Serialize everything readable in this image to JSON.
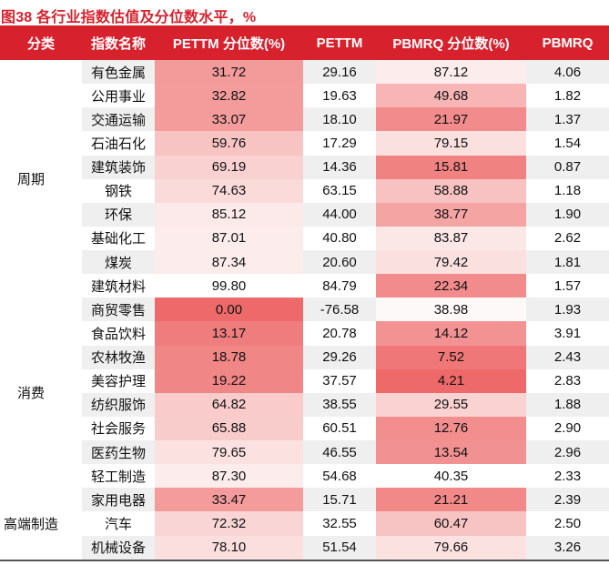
{
  "chart_data": {
    "type": "table",
    "title": "图38  各行业指数估值及分位数水平，%",
    "columns": [
      "分类",
      "指数名称",
      "PETTM 分位数(%)",
      "PETTM",
      "PBMRQ 分位数(%)",
      "PBMRQ"
    ],
    "groups": [
      {
        "category": "周期",
        "rows": [
          {
            "name": "有色金属",
            "pettm_pct": "31.72",
            "pettm": "29.16",
            "pbmrq_pct": "87.12",
            "pbmrq": "4.06",
            "heat": [
              0.68,
              0.13
            ]
          },
          {
            "name": "公用事业",
            "pettm_pct": "32.82",
            "pettm": "19.63",
            "pbmrq_pct": "49.68",
            "pbmrq": "1.82",
            "heat": [
              0.67,
              0.5
            ]
          },
          {
            "name": "交通运输",
            "pettm_pct": "33.07",
            "pettm": "18.10",
            "pbmrq_pct": "21.97",
            "pbmrq": "1.37",
            "heat": [
              0.67,
              0.78
            ]
          },
          {
            "name": "石油石化",
            "pettm_pct": "59.76",
            "pettm": "17.29",
            "pbmrq_pct": "79.15",
            "pbmrq": "1.54",
            "heat": [
              0.4,
              0.21
            ]
          },
          {
            "name": "建筑装饰",
            "pettm_pct": "69.19",
            "pettm": "14.36",
            "pbmrq_pct": "15.81",
            "pbmrq": "0.87",
            "heat": [
              0.31,
              0.84
            ]
          },
          {
            "name": "钢铁",
            "pettm_pct": "74.63",
            "pettm": "63.15",
            "pbmrq_pct": "58.88",
            "pbmrq": "1.18",
            "heat": [
              0.25,
              0.41
            ]
          },
          {
            "name": "环保",
            "pettm_pct": "85.12",
            "pettm": "44.00",
            "pbmrq_pct": "38.77",
            "pbmrq": "1.90",
            "heat": [
              0.15,
              0.61
            ]
          },
          {
            "name": "基础化工",
            "pettm_pct": "87.01",
            "pettm": "40.80",
            "pbmrq_pct": "83.87",
            "pbmrq": "2.62",
            "heat": [
              0.13,
              0.16
            ]
          },
          {
            "name": "煤炭",
            "pettm_pct": "87.34",
            "pettm": "20.60",
            "pbmrq_pct": "79.42",
            "pbmrq": "1.81",
            "heat": [
              0.13,
              0.21
            ]
          },
          {
            "name": "建筑材料",
            "pettm_pct": "99.80",
            "pettm": "84.79",
            "pbmrq_pct": "22.34",
            "pbmrq": "1.57",
            "heat": [
              0.0,
              0.78
            ]
          }
        ]
      },
      {
        "category": "消费",
        "rows": [
          {
            "name": "商贸零售",
            "pettm_pct": "0.00",
            "pettm": "-76.58",
            "pbmrq_pct": "38.98",
            "pbmrq": "1.93",
            "heat": [
              1.0,
              0.04
            ]
          },
          {
            "name": "食品饮料",
            "pettm_pct": "13.17",
            "pettm": "20.78",
            "pbmrq_pct": "14.12",
            "pbmrq": "3.91",
            "heat": [
              0.87,
              0.73
            ]
          },
          {
            "name": "农林牧渔",
            "pettm_pct": "18.78",
            "pettm": "29.26",
            "pbmrq_pct": "7.52",
            "pbmrq": "2.43",
            "heat": [
              0.81,
              0.91
            ]
          },
          {
            "name": "美容护理",
            "pettm_pct": "19.22",
            "pettm": "37.57",
            "pbmrq_pct": "4.21",
            "pbmrq": "2.83",
            "heat": [
              0.81,
              1.0
            ]
          },
          {
            "name": "纺织服饰",
            "pettm_pct": "64.82",
            "pettm": "38.55",
            "pbmrq_pct": "29.55",
            "pbmrq": "1.88",
            "heat": [
              0.35,
              0.3
            ]
          },
          {
            "name": "社会服务",
            "pettm_pct": "65.88",
            "pettm": "60.51",
            "pbmrq_pct": "12.76",
            "pbmrq": "2.90",
            "heat": [
              0.34,
              0.76
            ]
          },
          {
            "name": "医药生物",
            "pettm_pct": "79.65",
            "pettm": "46.55",
            "pbmrq_pct": "13.54",
            "pbmrq": "2.96",
            "heat": [
              0.2,
              0.74
            ]
          },
          {
            "name": "轻工制造",
            "pettm_pct": "87.30",
            "pettm": "54.68",
            "pbmrq_pct": "40.35",
            "pbmrq": "2.33",
            "heat": [
              0.13,
              0.0
            ]
          }
        ]
      },
      {
        "category": "高端制造",
        "rows": [
          {
            "name": "家用电器",
            "pettm_pct": "33.47",
            "pettm": "15.71",
            "pbmrq_pct": "21.21",
            "pbmrq": "2.39",
            "heat": [
              0.67,
              0.79
            ]
          },
          {
            "name": "汽车",
            "pettm_pct": "72.32",
            "pettm": "32.55",
            "pbmrq_pct": "60.47",
            "pbmrq": "2.50",
            "heat": [
              0.28,
              0.4
            ]
          },
          {
            "name": "机械设备",
            "pettm_pct": "78.10",
            "pettm": "51.54",
            "pbmrq_pct": "79.66",
            "pbmrq": "3.26",
            "heat": [
              0.22,
              0.2
            ]
          }
        ]
      }
    ],
    "layout_hints": {
      "heat_columns": [
        "PETTM 分位数(%)",
        "PBMRQ 分位数(%)"
      ],
      "heat_scale": "red = low percentile, white = high percentile"
    }
  },
  "colors": {
    "accent_red": "#d7222e",
    "header_text": "#ffffff",
    "heat_base_red": "#ee6a6a",
    "row_stripe": "#efefef",
    "body_text": "#111111",
    "table_bottom_border": "#555555"
  }
}
